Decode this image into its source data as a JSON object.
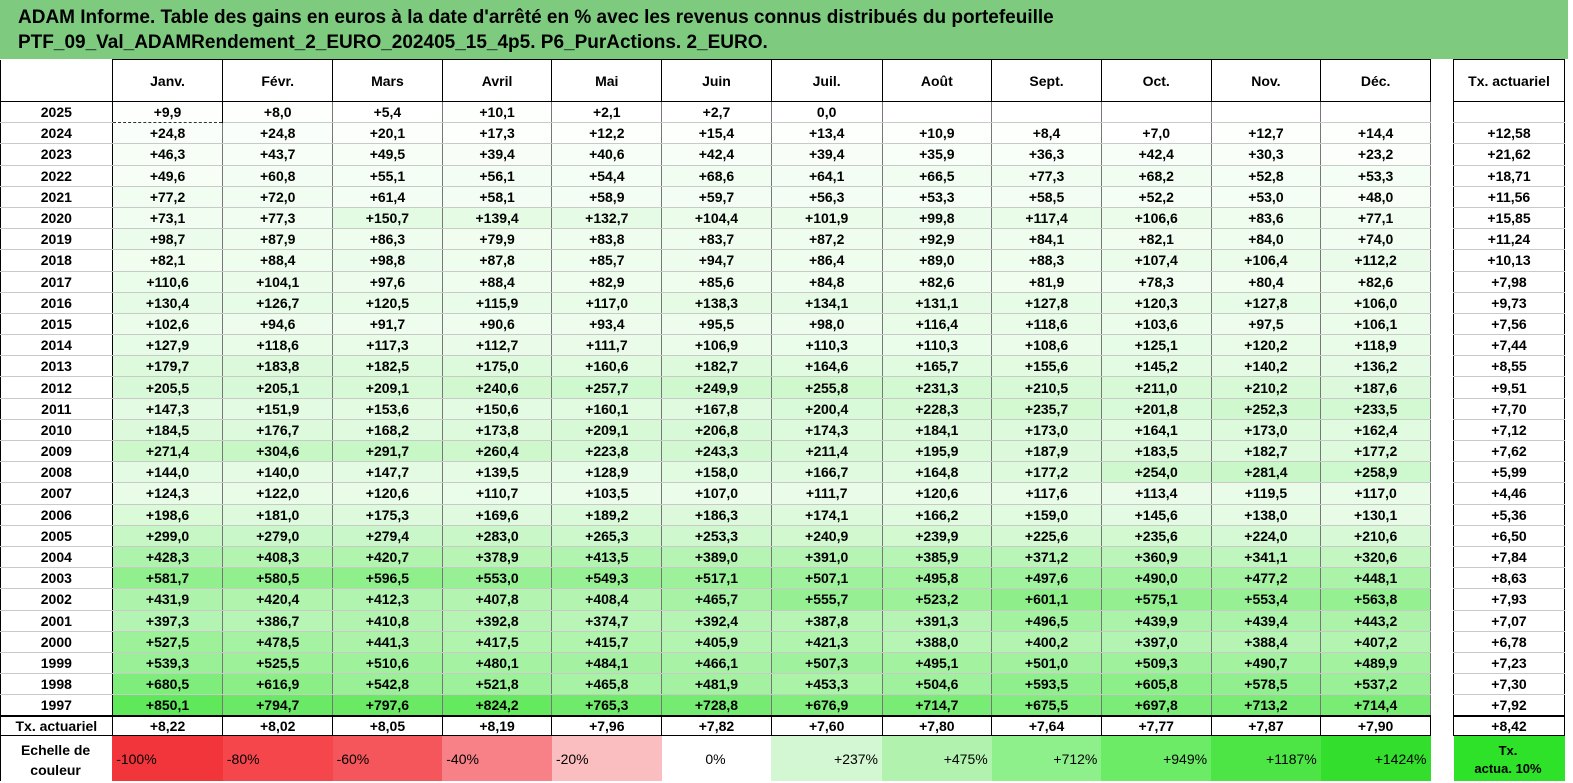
{
  "title": {
    "line1": "ADAM Informe. Table des gains en euros à la date d'arrêté en % avec les revenus connus distribués du portefeuille",
    "line2": "PTF_09_Val_ADAMRendement_2_EURO_202405_15_4p5. P6_PurActions. 2_EURO."
  },
  "columns": [
    "Janv.",
    "Févr.",
    "Mars",
    "Avril",
    "Mai",
    "Juin",
    "Juil.",
    "Août",
    "Sept.",
    "Oct.",
    "Nov.",
    "Déc."
  ],
  "tx_header": "Tx. actuariel",
  "rows": [
    {
      "year": "2025",
      "values": [
        "+9,9",
        "+8,0",
        "+5,4",
        "+10,1",
        "+2,1",
        "+2,7",
        "0,0",
        "",
        "",
        "",
        "",
        ""
      ],
      "tx": ""
    },
    {
      "year": "2024",
      "values": [
        "+24,8",
        "+24,8",
        "+20,1",
        "+17,3",
        "+12,2",
        "+15,4",
        "+13,4",
        "+10,9",
        "+8,4",
        "+7,0",
        "+12,7",
        "+14,4"
      ],
      "tx": "+12,58"
    },
    {
      "year": "2023",
      "values": [
        "+46,3",
        "+43,7",
        "+49,5",
        "+39,4",
        "+40,6",
        "+42,4",
        "+39,4",
        "+35,9",
        "+36,3",
        "+42,4",
        "+30,3",
        "+23,2"
      ],
      "tx": "+21,62"
    },
    {
      "year": "2022",
      "values": [
        "+49,6",
        "+60,8",
        "+55,1",
        "+56,1",
        "+54,4",
        "+68,6",
        "+64,1",
        "+66,5",
        "+77,3",
        "+68,2",
        "+52,8",
        "+53,3"
      ],
      "tx": "+18,71"
    },
    {
      "year": "2021",
      "values": [
        "+77,2",
        "+72,0",
        "+61,4",
        "+58,1",
        "+58,9",
        "+59,7",
        "+56,3",
        "+53,3",
        "+58,5",
        "+52,2",
        "+53,0",
        "+48,0"
      ],
      "tx": "+11,56"
    },
    {
      "year": "2020",
      "values": [
        "+73,1",
        "+77,3",
        "+150,7",
        "+139,4",
        "+132,7",
        "+104,4",
        "+101,9",
        "+99,8",
        "+117,4",
        "+106,6",
        "+83,6",
        "+77,1"
      ],
      "tx": "+15,85"
    },
    {
      "year": "2019",
      "values": [
        "+98,7",
        "+87,9",
        "+86,3",
        "+79,9",
        "+83,8",
        "+83,7",
        "+87,2",
        "+92,9",
        "+84,1",
        "+82,1",
        "+84,0",
        "+74,0"
      ],
      "tx": "+11,24"
    },
    {
      "year": "2018",
      "values": [
        "+82,1",
        "+88,4",
        "+98,8",
        "+87,8",
        "+85,7",
        "+94,7",
        "+86,4",
        "+89,0",
        "+88,3",
        "+107,4",
        "+106,4",
        "+112,2"
      ],
      "tx": "+10,13"
    },
    {
      "year": "2017",
      "values": [
        "+110,6",
        "+104,1",
        "+97,6",
        "+88,4",
        "+82,9",
        "+85,6",
        "+84,8",
        "+82,6",
        "+81,9",
        "+78,3",
        "+80,4",
        "+82,6"
      ],
      "tx": "+7,98"
    },
    {
      "year": "2016",
      "values": [
        "+130,4",
        "+126,7",
        "+120,5",
        "+115,9",
        "+117,0",
        "+138,3",
        "+134,1",
        "+131,1",
        "+127,8",
        "+120,3",
        "+127,8",
        "+106,0"
      ],
      "tx": "+9,73"
    },
    {
      "year": "2015",
      "values": [
        "+102,6",
        "+94,6",
        "+91,7",
        "+90,6",
        "+93,4",
        "+95,5",
        "+98,0",
        "+116,4",
        "+118,6",
        "+103,6",
        "+97,5",
        "+106,1"
      ],
      "tx": "+7,56"
    },
    {
      "year": "2014",
      "values": [
        "+127,9",
        "+118,6",
        "+117,3",
        "+112,7",
        "+111,7",
        "+106,9",
        "+110,3",
        "+110,3",
        "+108,6",
        "+125,1",
        "+120,2",
        "+118,9"
      ],
      "tx": "+7,44"
    },
    {
      "year": "2013",
      "values": [
        "+179,7",
        "+183,8",
        "+182,5",
        "+175,0",
        "+160,6",
        "+182,7",
        "+164,6",
        "+165,7",
        "+155,6",
        "+145,2",
        "+140,2",
        "+136,2"
      ],
      "tx": "+8,55"
    },
    {
      "year": "2012",
      "values": [
        "+205,5",
        "+205,1",
        "+209,1",
        "+240,6",
        "+257,7",
        "+249,9",
        "+255,8",
        "+231,3",
        "+210,5",
        "+211,0",
        "+210,2",
        "+187,6"
      ],
      "tx": "+9,51"
    },
    {
      "year": "2011",
      "values": [
        "+147,3",
        "+151,9",
        "+153,6",
        "+150,6",
        "+160,1",
        "+167,8",
        "+200,4",
        "+228,3",
        "+235,7",
        "+201,8",
        "+252,3",
        "+233,5"
      ],
      "tx": "+7,70"
    },
    {
      "year": "2010",
      "values": [
        "+184,5",
        "+176,7",
        "+168,2",
        "+173,8",
        "+209,1",
        "+206,8",
        "+174,3",
        "+184,1",
        "+173,0",
        "+164,1",
        "+173,0",
        "+162,4"
      ],
      "tx": "+7,12"
    },
    {
      "year": "2009",
      "values": [
        "+271,4",
        "+304,6",
        "+291,7",
        "+260,4",
        "+223,8",
        "+243,3",
        "+211,4",
        "+195,9",
        "+187,9",
        "+183,5",
        "+182,7",
        "+177,2"
      ],
      "tx": "+7,62"
    },
    {
      "year": "2008",
      "values": [
        "+144,0",
        "+140,0",
        "+147,7",
        "+139,5",
        "+128,9",
        "+158,0",
        "+166,7",
        "+164,8",
        "+177,2",
        "+254,0",
        "+281,4",
        "+258,9"
      ],
      "tx": "+5,99"
    },
    {
      "year": "2007",
      "values": [
        "+124,3",
        "+122,0",
        "+120,6",
        "+110,7",
        "+103,5",
        "+107,0",
        "+111,7",
        "+120,6",
        "+117,6",
        "+113,4",
        "+119,5",
        "+117,0"
      ],
      "tx": "+4,46"
    },
    {
      "year": "2006",
      "values": [
        "+198,6",
        "+181,0",
        "+175,3",
        "+169,6",
        "+189,2",
        "+186,3",
        "+174,1",
        "+166,2",
        "+159,0",
        "+145,6",
        "+138,0",
        "+130,1"
      ],
      "tx": "+5,36"
    },
    {
      "year": "2005",
      "values": [
        "+299,0",
        "+279,0",
        "+279,4",
        "+283,0",
        "+265,3",
        "+253,3",
        "+240,9",
        "+239,9",
        "+225,6",
        "+235,6",
        "+224,0",
        "+210,6"
      ],
      "tx": "+6,50"
    },
    {
      "year": "2004",
      "values": [
        "+428,3",
        "+408,3",
        "+420,7",
        "+378,9",
        "+413,5",
        "+389,0",
        "+391,0",
        "+385,9",
        "+371,2",
        "+360,9",
        "+341,1",
        "+320,6"
      ],
      "tx": "+7,84"
    },
    {
      "year": "2003",
      "values": [
        "+581,7",
        "+580,5",
        "+596,5",
        "+553,0",
        "+549,3",
        "+517,1",
        "+507,1",
        "+495,8",
        "+497,6",
        "+490,0",
        "+477,2",
        "+448,1"
      ],
      "tx": "+8,63"
    },
    {
      "year": "2002",
      "values": [
        "+431,9",
        "+420,4",
        "+412,3",
        "+407,8",
        "+408,4",
        "+465,7",
        "+555,7",
        "+523,2",
        "+601,1",
        "+575,1",
        "+553,4",
        "+563,8"
      ],
      "tx": "+7,93"
    },
    {
      "year": "2001",
      "values": [
        "+397,3",
        "+386,7",
        "+410,8",
        "+392,8",
        "+374,7",
        "+392,4",
        "+387,8",
        "+391,3",
        "+496,5",
        "+439,9",
        "+439,4",
        "+443,2"
      ],
      "tx": "+7,07"
    },
    {
      "year": "2000",
      "values": [
        "+527,5",
        "+478,5",
        "+441,3",
        "+417,5",
        "+415,7",
        "+405,9",
        "+421,3",
        "+388,0",
        "+400,2",
        "+397,0",
        "+388,4",
        "+407,2"
      ],
      "tx": "+6,78"
    },
    {
      "year": "1999",
      "values": [
        "+539,3",
        "+525,5",
        "+510,6",
        "+480,1",
        "+484,1",
        "+466,1",
        "+507,3",
        "+495,1",
        "+501,0",
        "+509,3",
        "+490,7",
        "+489,9"
      ],
      "tx": "+7,23"
    },
    {
      "year": "1998",
      "values": [
        "+680,5",
        "+616,9",
        "+542,8",
        "+521,8",
        "+465,8",
        "+481,9",
        "+453,3",
        "+504,6",
        "+593,5",
        "+605,8",
        "+578,5",
        "+537,2"
      ],
      "tx": "+7,30"
    },
    {
      "year": "1997",
      "values": [
        "+850,1",
        "+794,7",
        "+797,6",
        "+824,2",
        "+765,3",
        "+728,8",
        "+676,9",
        "+714,7",
        "+675,5",
        "+697,8",
        "+713,2",
        "+714,4"
      ],
      "tx": "+7,92"
    }
  ],
  "averages": {
    "label": "Tx. actuariel",
    "values": [
      "+8,22",
      "+8,02",
      "+8,05",
      "+8,19",
      "+7,96",
      "+7,82",
      "+7,60",
      "+7,80",
      "+7,64",
      "+7,77",
      "+7,87",
      "+7,90"
    ],
    "tx": "+8,42"
  },
  "scale": {
    "label_line1": "Echelle de",
    "label_line2": "couleur",
    "steps": [
      {
        "text": "-100%",
        "color": "#f2353b"
      },
      {
        "text": "-80%",
        "color": "#f5464c"
      },
      {
        "text": "-60%",
        "color": "#f5565b"
      },
      {
        "text": "-40%",
        "color": "#f78186"
      },
      {
        "text": "-20%",
        "color": "#fbbec0"
      },
      {
        "text": "0%",
        "color": "#ffffff"
      },
      {
        "text": "+237%",
        "color": "#d4f7d3"
      },
      {
        "text": "+475%",
        "color": "#b1f3ae"
      },
      {
        "text": "+712%",
        "color": "#8ef08a"
      },
      {
        "text": "+949%",
        "color": "#6cec66"
      },
      {
        "text": "+1187%",
        "color": "#4de546"
      },
      {
        "text": "+1424%",
        "color": "#33de2c"
      }
    ],
    "tx_line1": "Tx.",
    "tx_line2": "actua. 10%",
    "tx_color": "#2ee22a"
  },
  "colors": {
    "title_bg": "#7ecb80",
    "cell_low": "#ffffff",
    "cell_high": "#5fe85a"
  },
  "color_scale_max": 1424
}
